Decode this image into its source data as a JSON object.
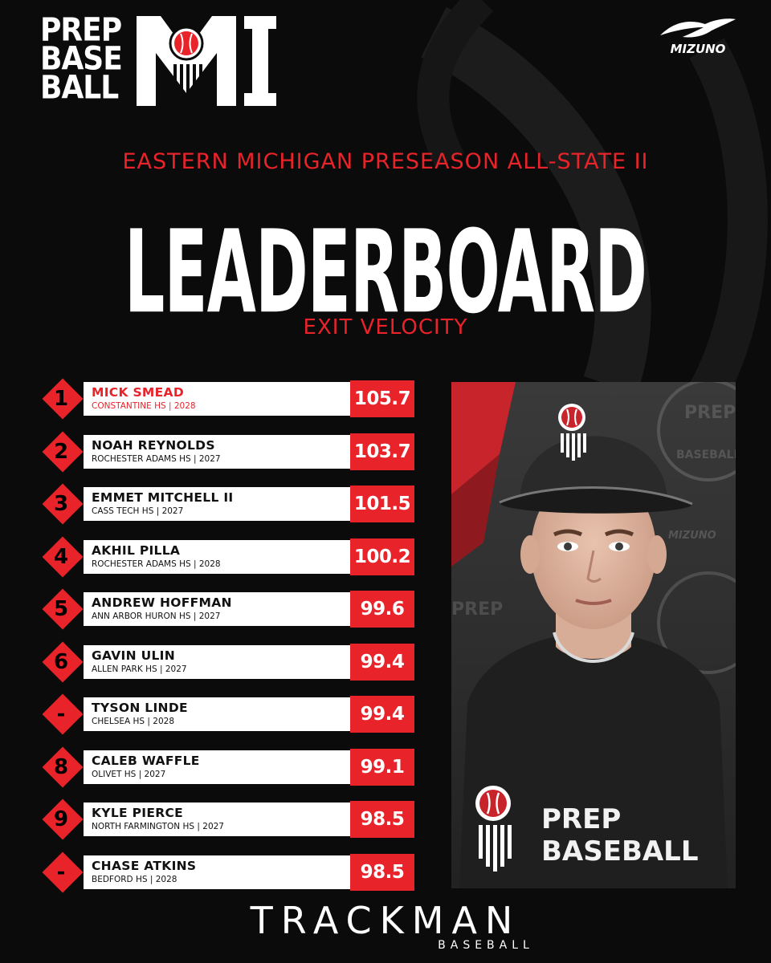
{
  "brand": {
    "logo_words": [
      "PREP",
      "BASE",
      "BALL"
    ],
    "logo_state": "MI",
    "sponsor": "MIZUNO",
    "footer_brand": "TRACKMAN",
    "footer_sub": "BASEBALL"
  },
  "header": {
    "subtitle": "EASTERN MICHIGAN PRESEASON ALL-STATE II",
    "title": "LEADERBOARD",
    "category": "EXIT VELOCITY"
  },
  "leaderboard": [
    {
      "rank": "1",
      "name": "MICK SMEAD",
      "meta": "CONSTANTINE HS | 2028",
      "value": "105.7"
    },
    {
      "rank": "2",
      "name": "NOAH REYNOLDS",
      "meta": "ROCHESTER ADAMS HS | 2027",
      "value": "103.7"
    },
    {
      "rank": "3",
      "name": "EMMET MITCHELL II",
      "meta": "CASS TECH HS | 2027",
      "value": "101.5"
    },
    {
      "rank": "4",
      "name": "AKHIL PILLA",
      "meta": "ROCHESTER ADAMS HS | 2028",
      "value": "100.2"
    },
    {
      "rank": "5",
      "name": "ANDREW HOFFMAN",
      "meta": "ANN ARBOR HURON HS | 2027",
      "value": "99.6"
    },
    {
      "rank": "6",
      "name": "GAVIN ULIN",
      "meta": "ALLEN PARK HS | 2027",
      "value": "99.4"
    },
    {
      "rank": "-",
      "name": "TYSON LINDE",
      "meta": "CHELSEA HS | 2028",
      "value": "99.4"
    },
    {
      "rank": "8",
      "name": "CALEB WAFFLE",
      "meta": "OLIVET HS | 2027",
      "value": "99.1"
    },
    {
      "rank": "9",
      "name": "KYLE PIERCE",
      "meta": "NORTH FARMINGTON HS | 2027",
      "value": "98.5"
    },
    {
      "rank": "-",
      "name": "CHASE ATKINS",
      "meta": "BEDFORD HS | 2028",
      "value": "98.5"
    }
  ],
  "photo": {
    "shirt_line1": "PREP",
    "shirt_line2": "BASEBALL",
    "backdrop_a": "PREP",
    "backdrop_b": "BASEBALL",
    "backdrop_sponsor": "MIZUNO"
  },
  "colors": {
    "accent_red": "#e8232a",
    "background": "#0b0b0b",
    "plate": "#ffffff"
  }
}
